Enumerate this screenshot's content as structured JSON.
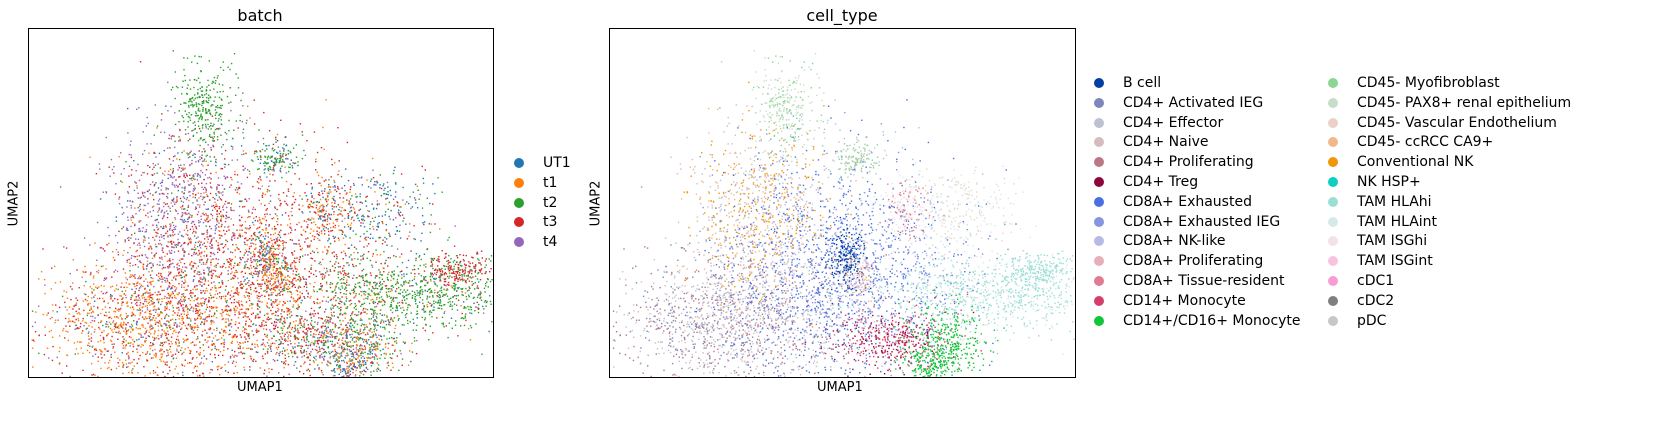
{
  "chart_data": [
    {
      "type": "scatter",
      "title": "batch",
      "xlabel": "UMAP1",
      "ylabel": "UMAP2",
      "grid": false,
      "legend_placement": "right",
      "series": [
        {
          "name": "UT1",
          "color": "#1f77b4"
        },
        {
          "name": "t1",
          "color": "#ff7f0e"
        },
        {
          "name": "t2",
          "color": "#2ca02c"
        },
        {
          "name": "t3",
          "color": "#d62728"
        },
        {
          "name": "t4",
          "color": "#9467bd"
        }
      ]
    },
    {
      "type": "scatter",
      "title": "cell_type",
      "xlabel": "UMAP1",
      "ylabel": "UMAP2",
      "grid": false,
      "legend_placement": "right",
      "series": [
        {
          "name": "B cell",
          "color": "#023fa5"
        },
        {
          "name": "CD4+ Activated IEG",
          "color": "#7d87b9"
        },
        {
          "name": "CD4+ Effector",
          "color": "#bec1d4"
        },
        {
          "name": "CD4+ Naive",
          "color": "#d6bcc0"
        },
        {
          "name": "CD4+ Proliferating",
          "color": "#bb7784"
        },
        {
          "name": "CD4+ Treg",
          "color": "#8e063b"
        },
        {
          "name": "CD8A+ Exhausted",
          "color": "#4a6fe3"
        },
        {
          "name": "CD8A+ Exhausted IEG",
          "color": "#8595e1"
        },
        {
          "name": "CD8A+ NK-like",
          "color": "#b5bbe3"
        },
        {
          "name": "CD8A+ Proliferating",
          "color": "#e6afb9"
        },
        {
          "name": "CD8A+ Tissue-resident",
          "color": "#e07b91"
        },
        {
          "name": "CD14+ Monocyte",
          "color": "#d33f6a"
        },
        {
          "name": "CD14+/CD16+ Monocyte",
          "color": "#11c638"
        },
        {
          "name": "CD45- Myofibroblast",
          "color": "#8dd593"
        },
        {
          "name": "CD45- PAX8+ renal epithelium",
          "color": "#c6dec7"
        },
        {
          "name": "CD45- Vascular Endothelium",
          "color": "#ead3c6"
        },
        {
          "name": "CD45- ccRCC CA9+",
          "color": "#f0b98d"
        },
        {
          "name": "Conventional NK",
          "color": "#ef9708"
        },
        {
          "name": "NK HSP+",
          "color": "#0fcfc0"
        },
        {
          "name": "TAM HLAhi",
          "color": "#9cded6"
        },
        {
          "name": "TAM HLAint",
          "color": "#d5eae7"
        },
        {
          "name": "TAM ISGhi",
          "color": "#f3e1eb"
        },
        {
          "name": "TAM ISGint",
          "color": "#f6c4e1"
        },
        {
          "name": "cDC1",
          "color": "#f79cd4"
        },
        {
          "name": "cDC2",
          "color": "#7f7f7f"
        },
        {
          "name": "pDC",
          "color": "#c7c7c7"
        }
      ]
    }
  ]
}
